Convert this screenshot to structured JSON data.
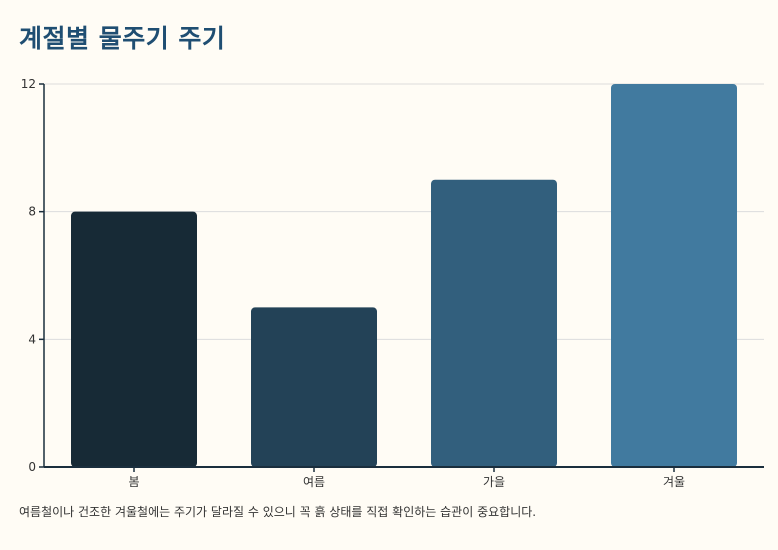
{
  "header": {
    "title": "계절별 물주기 주기"
  },
  "footnote": "여름철이나 건조한 겨울철에는 주기가 달라질 수 있으니 꼭 흙 상태를 직접 확인하는 습관이 중요합니다.",
  "colors": {
    "background": "#fffcf5",
    "title": "#1f4e72",
    "bars": [
      "#172a36",
      "#234257",
      "#325f7d",
      "#417a9f"
    ],
    "axis": "#1a2e3d",
    "grid": "#dcdcdc"
  },
  "chart_data": {
    "type": "bar",
    "title": "계절별 물주기 주기",
    "xlabel": "",
    "ylabel": "",
    "categories": [
      "봄",
      "여름",
      "가을",
      "겨울"
    ],
    "values": [
      8,
      5,
      9,
      12
    ],
    "ylim": [
      0,
      12
    ],
    "yticks": [
      0,
      4,
      8,
      12
    ],
    "grid": true,
    "legend": "none"
  }
}
